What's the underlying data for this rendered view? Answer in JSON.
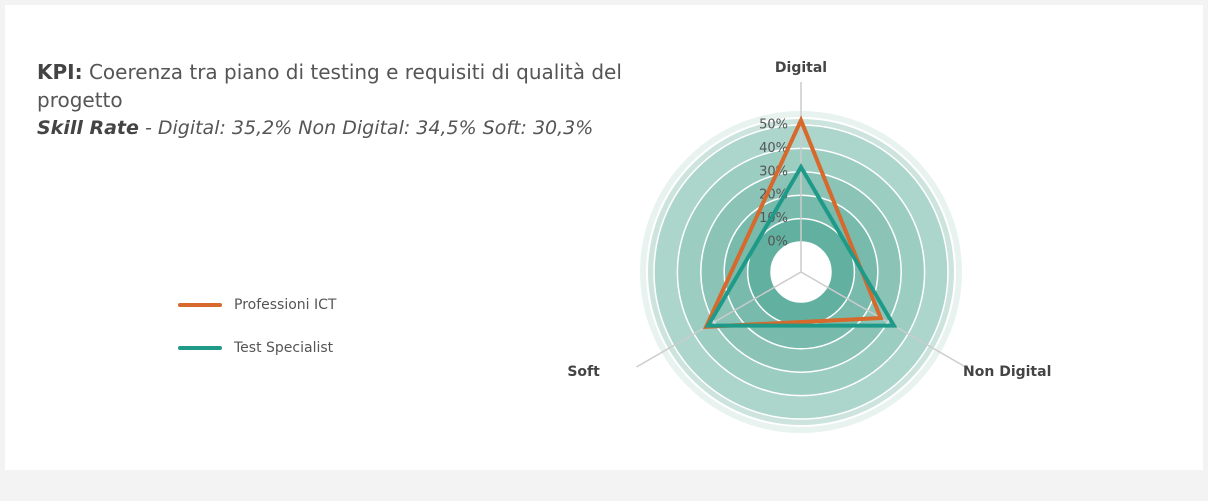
{
  "chart_data": {
    "type": "radar",
    "kpi_label": "KPI:",
    "title": "Coerenza tra piano di testing e requisiti di qualità del progetto",
    "subtitle_label": "Skill Rate",
    "subtitle": "- Digital: 35,2% Non Digital: 34,5% Soft: 30,3%",
    "categories": [
      "Digital",
      "Non Digital",
      "Soft"
    ],
    "series": [
      {
        "name": "Professioni ICT",
        "color": "#d6692b",
        "values": [
          52,
          26.5,
          34
        ]
      },
      {
        "name": "Test Specialist",
        "color": "#1f9a89",
        "values": [
          32,
          33,
          33
        ]
      }
    ],
    "ylim": [
      0,
      50
    ],
    "yticks": [
      {
        "value": 0,
        "label": "0%"
      },
      {
        "value": 10,
        "label": "10%"
      },
      {
        "value": 20,
        "label": "20%"
      },
      {
        "value": 30,
        "label": "30%"
      },
      {
        "value": 40,
        "label": "40%"
      },
      {
        "value": 50,
        "label": "50%"
      }
    ],
    "legend": "left"
  }
}
